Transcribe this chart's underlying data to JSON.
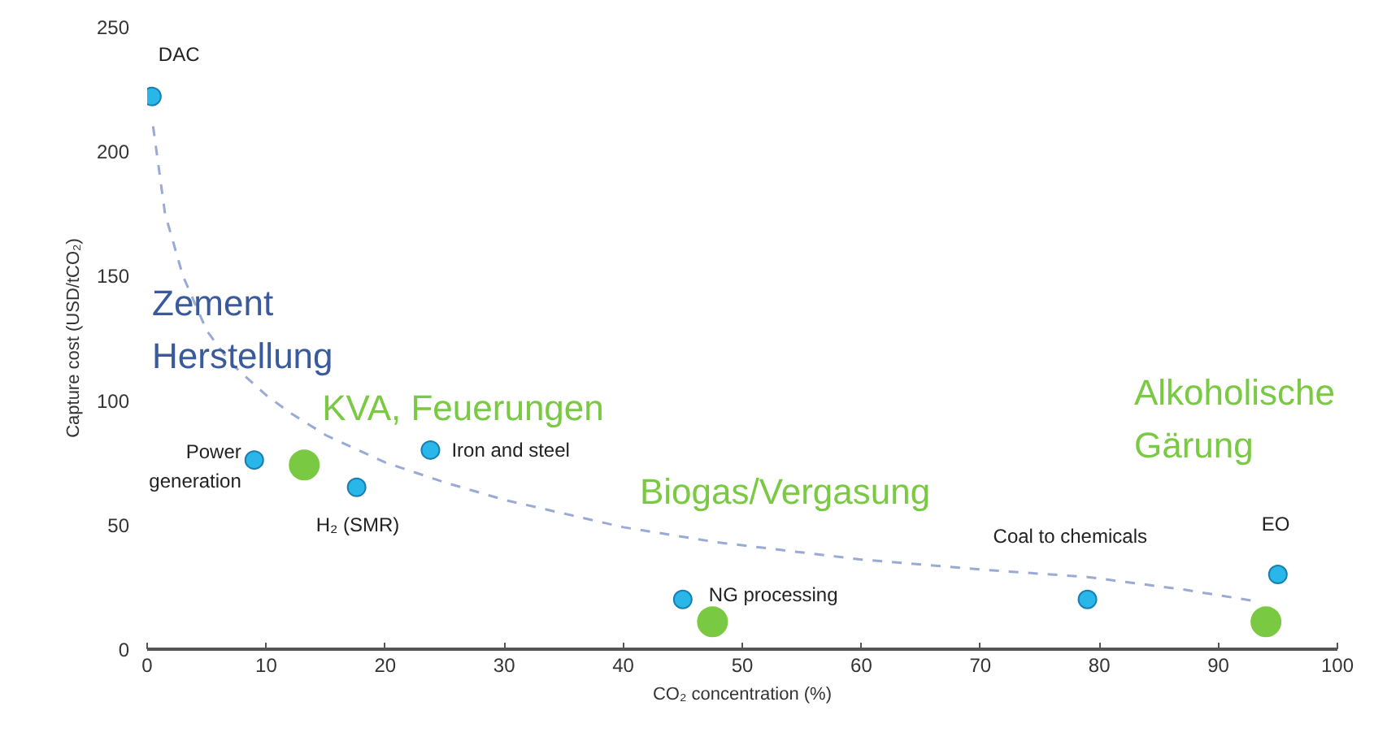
{
  "chart_data": {
    "type": "scatter",
    "xlabel": "CO₂ concentration (%)",
    "ylabel": "Capture cost (USD/tCO₂)",
    "xlim": [
      0,
      100
    ],
    "xticks": [
      0,
      10,
      20,
      30,
      40,
      50,
      60,
      70,
      80,
      90,
      100
    ],
    "ylim": [
      0,
      250
    ],
    "yticks": [
      0,
      50,
      100,
      150,
      200,
      250
    ],
    "grid": false,
    "marker": "circle",
    "series": [
      {
        "color": "#29b6e8",
        "x": [
          0.4,
          9,
          17.6,
          23.8,
          45,
          79,
          95
        ],
        "values": [
          222,
          76,
          65,
          80,
          20,
          20,
          30
        ]
      },
      {
        "color": "#7ac943",
        "x": [
          13.2,
          47.5,
          94
        ],
        "values": [
          74,
          11,
          11
        ],
        "sizes": [
          1,
          1,
          1
        ]
      },
      {
        "type": "line",
        "color": "#9aaad6",
        "marker": "none",
        "line_style": "dashed",
        "x": [
          0.5,
          1.5,
          3,
          5,
          7,
          10,
          12,
          15,
          20,
          25,
          30,
          40,
          47.8,
          60,
          70,
          79,
          87,
          93.5
        ],
        "values": [
          210,
          175,
          150,
          128,
          115,
          102,
          95,
          86,
          75,
          67,
          60,
          49,
          43,
          36,
          32,
          29,
          24,
          19
        ]
      }
    ],
    "annotations": [
      {
        "text": "DAC",
        "x": 0.4,
        "y": 222
      },
      {
        "text": "Power\ngeneration",
        "x": 9,
        "y": 76
      },
      {
        "text": "H₂ (SMR)",
        "x": 17.6,
        "y": 65
      },
      {
        "text": "Iron and steel",
        "x": 23.8,
        "y": 80
      },
      {
        "text": "NG processing",
        "x": 45,
        "y": 20
      },
      {
        "text": "Coal to chemicals",
        "x": 79,
        "y": 20
      },
      {
        "text": "EO",
        "x": 95,
        "y": 30
      },
      {
        "text": "KVA, Feuerungen",
        "x": 13.2,
        "y": 74
      },
      "Zement\nHerstellung",
      "Biogas/Vergasung",
      "Alkoholische\nGärung"
    ]
  }
}
